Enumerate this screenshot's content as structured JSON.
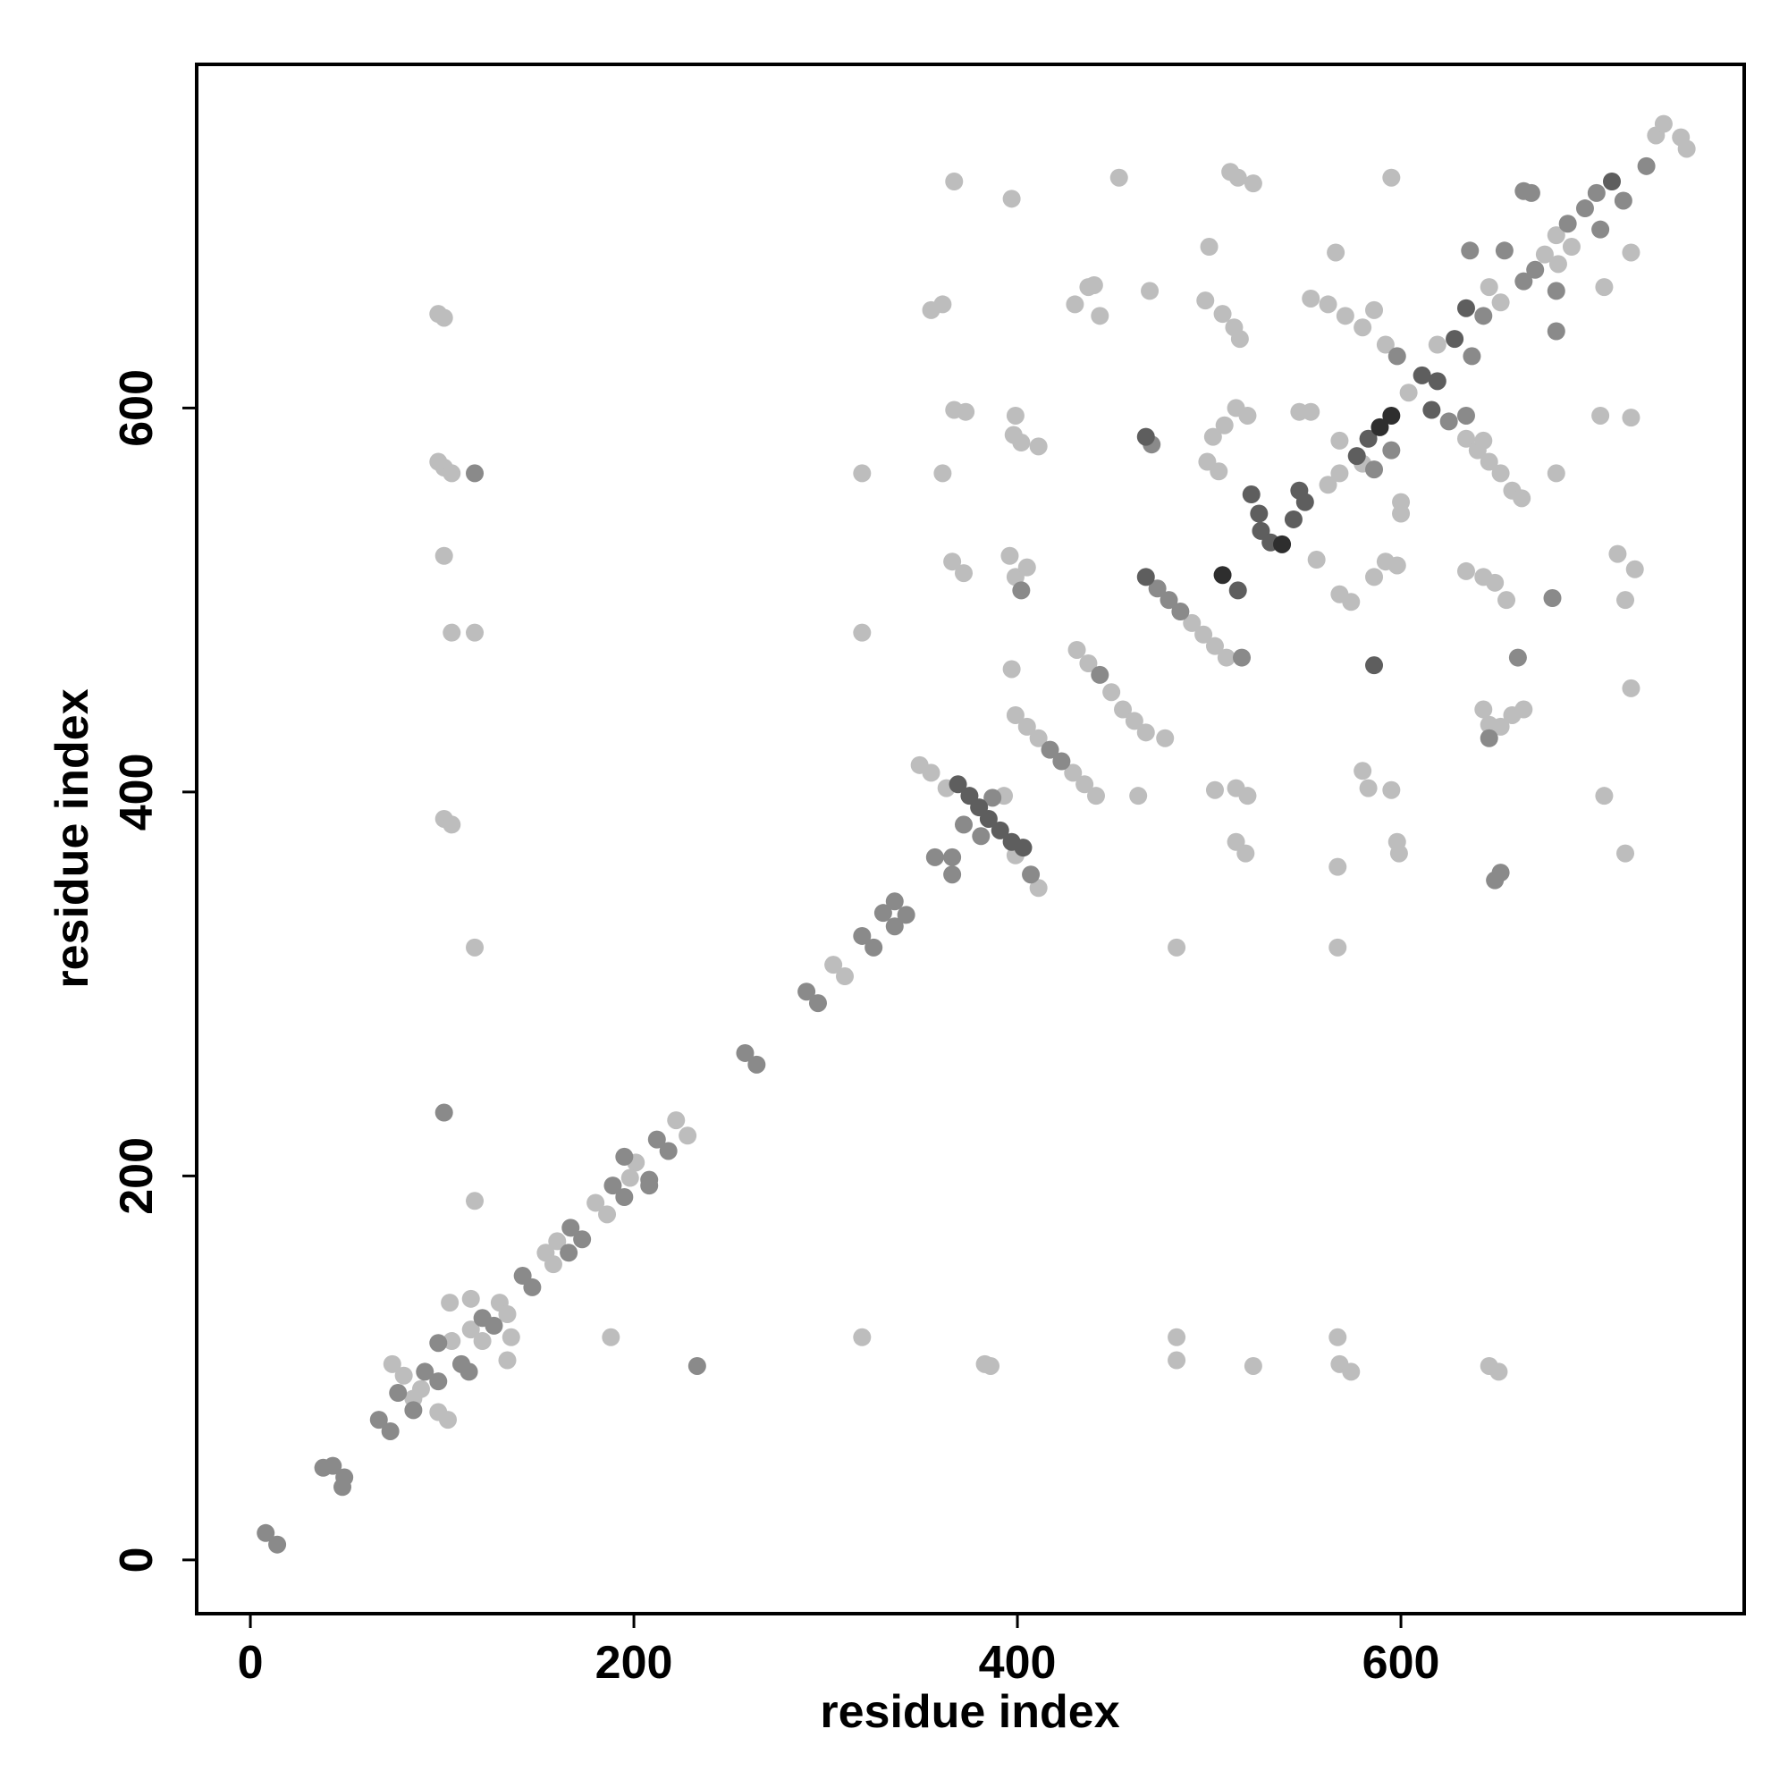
{
  "chart_data": {
    "type": "scatter",
    "xlabel": "residue index",
    "ylabel": "residue index",
    "xlim": [
      -28,
      779
    ],
    "ylim": [
      -28,
      779
    ],
    "xticks": [
      0,
      200,
      400,
      600
    ],
    "yticks": [
      0,
      200,
      400,
      600
    ],
    "series": [
      {
        "color": "#bdbdbd",
        "x": [
          74,
          80,
          98,
          103,
          85,
          89,
          104,
          115,
          121,
          130,
          134,
          134,
          136,
          115,
          105,
          154,
          160,
          158,
          180,
          186,
          201,
          198,
          222,
          228,
          304,
          310,
          349,
          355,
          363,
          393,
          399,
          411,
          399,
          405,
          411,
          429,
          435,
          441,
          431,
          437,
          449,
          455,
          461,
          467,
          477,
          491,
          497,
          503,
          509,
          556,
          562,
          568,
          592,
          604,
          619,
          646,
          652,
          675,
          681,
          689,
          682,
          733,
          737,
          746,
          749,
          98,
          101,
          98,
          101,
          105,
          101,
          105,
          117,
          101,
          105,
          117,
          117,
          367,
          397,
          453,
          355,
          361,
          367,
          373,
          361,
          319,
          319,
          319,
          188,
          383,
          386,
          483,
          483,
          523,
          567,
          568,
          574,
          646,
          651,
          483,
          567,
          567,
          463,
          503,
          514,
          520,
          514,
          519,
          580,
          583,
          595,
          598,
          599,
          706,
          717,
          720,
          717,
          713,
          722,
          704,
          720,
          706,
          720,
          437,
          430,
          443,
          440,
          469,
          500,
          498,
          507,
          513,
          516,
          515,
          523,
          511,
          595,
          566,
          502,
          508,
          514,
          520,
          499,
          505,
          547,
          553,
          600,
          600,
          553,
          562,
          571,
          580,
          586,
          681,
          634,
          640,
          646,
          652,
          658,
          663,
          643,
          634,
          643,
          649,
          655,
          643,
          646,
          652,
          658,
          664,
          399,
          396,
          405,
          366,
          372,
          397,
          398,
          402,
          411,
          399,
          568,
          574,
          586,
          592,
          598,
          568,
          580
        ],
        "values": [
          102,
          96,
          77,
          73,
          84,
          89,
          134,
          136,
          114,
          134,
          128,
          104,
          116,
          120,
          114,
          160,
          166,
          154,
          186,
          180,
          207,
          199,
          229,
          221,
          310,
          304,
          414,
          410,
          402,
          398,
          367,
          350,
          440,
          434,
          428,
          410,
          404,
          398,
          474,
          467,
          452,
          443,
          437,
          431,
          428,
          488,
          482,
          476,
          470,
          521,
          560,
          566,
          633,
          608,
          633,
          663,
          655,
          680,
          690,
          684,
          675,
          742,
          748,
          741,
          735,
          649,
          647,
          572,
          569,
          566,
          523,
          483,
          483,
          386,
          383,
          319,
          187,
          718,
          709,
          720,
          651,
          654,
          599,
          598,
          566,
          566,
          483,
          116,
          116,
          102,
          101,
          116,
          104,
          101,
          116,
          102,
          98,
          101,
          98,
          319,
          319,
          361,
          398,
          401,
          402,
          398,
          374,
          368,
          411,
          402,
          401,
          374,
          368,
          398,
          368,
          454,
          500,
          524,
          516,
          596,
          595,
          663,
          681,
          663,
          654,
          648,
          664,
          661,
          684,
          656,
          649,
          642,
          636,
          720,
          717,
          723,
          720,
          681,
          585,
          591,
          600,
          596,
          572,
          567,
          598,
          598,
          551,
          545,
          657,
          654,
          648,
          642,
          651,
          566,
          584,
          578,
          572,
          566,
          557,
          553,
          583,
          515,
          512,
          509,
          500,
          443,
          435,
          434,
          440,
          443,
          512,
          523,
          517,
          520,
          514,
          464,
          586,
          582,
          580,
          596,
          503,
          499,
          512,
          520,
          518,
          583,
          571
        ]
      },
      {
        "color": "#8a8a8a",
        "x": [
          8,
          14,
          38,
          43,
          48,
          49,
          67,
          73,
          77,
          85,
          91,
          98,
          98,
          110,
          114,
          121,
          127,
          142,
          147,
          166,
          167,
          173,
          189,
          195,
          195,
          208,
          208,
          212,
          218,
          258,
          264,
          290,
          296,
          319,
          325,
          330,
          336,
          336,
          342,
          357,
          366,
          366,
          372,
          381,
          387,
          407,
          417,
          423,
          443,
          473,
          479,
          485,
          117,
          101,
          233,
          470,
          598,
          625,
          634,
          637,
          643,
          664,
          670,
          687,
          696,
          702,
          704,
          716,
          664,
          668,
          636,
          654,
          681,
          681,
          679,
          661,
          646,
          517,
          586,
          595,
          402,
          652,
          649,
          728
        ],
        "values": [
          14,
          8,
          48,
          49,
          38,
          43,
          73,
          67,
          87,
          78,
          98,
          93,
          113,
          102,
          98,
          126,
          122,
          148,
          142,
          160,
          173,
          167,
          195,
          189,
          210,
          198,
          195,
          219,
          213,
          264,
          258,
          296,
          290,
          325,
          319,
          337,
          343,
          330,
          336,
          366,
          357,
          366,
          383,
          377,
          397,
          357,
          422,
          416,
          461,
          506,
          500,
          494,
          566,
          233,
          101,
          581,
          627,
          593,
          596,
          627,
          648,
          666,
          672,
          696,
          704,
          712,
          693,
          708,
          713,
          712,
          682,
          682,
          661,
          640,
          501,
          470,
          428,
          470,
          568,
          578,
          505,
          358,
          354,
          726
        ]
      },
      {
        "color": "#5e5e5e",
        "x": [
          369,
          375,
          380,
          385,
          391,
          397,
          403,
          467,
          515,
          522,
          526,
          527,
          532,
          544,
          550,
          547,
          577,
          583,
          611,
          616,
          619,
          628,
          634,
          710,
          467,
          586
        ],
        "values": [
          404,
          398,
          392,
          386,
          380,
          374,
          371,
          512,
          505,
          555,
          545,
          536,
          530,
          542,
          551,
          557,
          575,
          584,
          617,
          599,
          614,
          636,
          652,
          718,
          585,
          466
        ]
      },
      {
        "color": "#2e2e2e",
        "x": [
          507,
          538,
          589,
          595
        ],
        "values": [
          513,
          529,
          590,
          596
        ]
      }
    ]
  }
}
